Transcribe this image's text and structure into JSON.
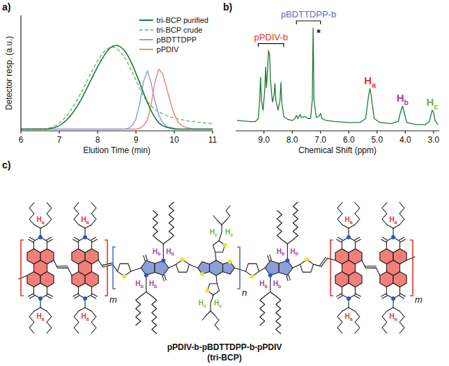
{
  "panels": [
    "a)",
    "b)",
    "c)"
  ],
  "chart_data": [
    {
      "type": "line",
      "xlabel": "Elution Time (min)",
      "ylabel": "Detector resp. (a.u.)",
      "x": [
        6,
        6.1,
        6.2,
        6.3,
        6.4,
        6.5,
        6.6,
        6.7,
        6.8,
        6.9,
        7,
        7.1,
        7.2,
        7.3,
        7.4,
        7.5,
        7.6,
        7.7,
        7.8,
        7.9,
        8,
        8.1,
        8.2,
        8.3,
        8.4,
        8.5,
        8.6,
        8.7,
        8.8,
        8.9,
        9,
        9.1,
        9.2,
        9.3,
        9.4,
        9.5,
        9.6,
        9.7,
        9.8,
        9.9,
        10,
        10.1,
        10.2,
        10.3,
        10.4,
        10.5,
        10.6,
        10.7,
        10.8,
        10.9,
        11
      ],
      "series": [
        {
          "name": "tri-BCP purified",
          "color": "#1b7a3a",
          "line_style": "solid",
          "values": [
            0.02,
            0.02,
            0.02,
            0.02,
            0.02,
            0.02,
            0.02,
            0.02,
            0.03,
            0.04,
            0.06,
            0.09,
            0.13,
            0.18,
            0.24,
            0.31,
            0.39,
            0.48,
            0.57,
            0.66,
            0.75,
            0.83,
            0.9,
            0.96,
            0.99,
            1.0,
            0.98,
            0.94,
            0.87,
            0.78,
            0.67,
            0.56,
            0.44,
            0.33,
            0.23,
            0.15,
            0.09,
            0.06,
            0.04,
            0.03,
            0.02,
            0.02,
            0.02,
            0.02,
            0.02,
            0.02,
            0.02,
            0.02,
            0.02,
            0.02,
            0.02
          ]
        },
        {
          "name": "tri-BCP crude",
          "color": "#74c27a",
          "line_style": "dashed",
          "values": [
            0.02,
            0.02,
            0.02,
            0.02,
            0.02,
            0.02,
            0.02,
            0.03,
            0.04,
            0.06,
            0.09,
            0.13,
            0.18,
            0.24,
            0.31,
            0.39,
            0.47,
            0.56,
            0.65,
            0.74,
            0.82,
            0.89,
            0.94,
            0.97,
            0.98,
            0.96,
            0.92,
            0.86,
            0.78,
            0.69,
            0.59,
            0.49,
            0.4,
            0.34,
            0.29,
            0.25,
            0.22,
            0.2,
            0.18,
            0.16,
            0.15,
            0.14,
            0.13,
            0.12,
            0.11,
            0.11,
            0.1,
            0.1,
            0.09,
            0.09,
            0.08
          ]
        },
        {
          "name": "pBDTTDPP",
          "color": "#8fa6e2",
          "line_style": "solid",
          "values": [
            0.02,
            0.02,
            0.02,
            0.02,
            0.02,
            0.02,
            0.02,
            0.02,
            0.02,
            0.02,
            0.02,
            0.02,
            0.02,
            0.02,
            0.02,
            0.02,
            0.02,
            0.02,
            0.02,
            0.02,
            0.02,
            0.02,
            0.02,
            0.02,
            0.02,
            0.02,
            0.02,
            0.02,
            0.03,
            0.06,
            0.14,
            0.32,
            0.58,
            0.7,
            0.55,
            0.34,
            0.18,
            0.09,
            0.05,
            0.04,
            0.03,
            0.02,
            0.02,
            0.02,
            0.02,
            0.02,
            0.02,
            0.02,
            0.02,
            0.02,
            0.02
          ]
        },
        {
          "name": "pPDIV",
          "color": "#f28a8a",
          "line_style": "solid",
          "values": [
            0.02,
            0.02,
            0.02,
            0.02,
            0.02,
            0.02,
            0.02,
            0.02,
            0.02,
            0.02,
            0.02,
            0.02,
            0.02,
            0.02,
            0.02,
            0.02,
            0.02,
            0.02,
            0.02,
            0.02,
            0.02,
            0.02,
            0.02,
            0.02,
            0.02,
            0.02,
            0.02,
            0.02,
            0.02,
            0.02,
            0.02,
            0.03,
            0.06,
            0.13,
            0.32,
            0.58,
            0.72,
            0.66,
            0.5,
            0.33,
            0.19,
            0.1,
            0.06,
            0.04,
            0.03,
            0.02,
            0.02,
            0.02,
            0.02,
            0.02,
            0.02
          ]
        }
      ],
      "xlim": [
        6,
        11
      ],
      "ylim": [
        0,
        1.35
      ],
      "xticks": [
        6,
        7,
        8,
        9,
        10,
        11
      ],
      "tick_labels": "x",
      "legend": "upper right"
    },
    {
      "type": "line",
      "xlabel": "Chemical Shift (ppm)",
      "x": [
        9.95,
        9.5,
        9.3,
        9.2,
        9.15,
        9.12,
        9.09,
        9.03,
        8.97,
        8.94,
        8.91,
        8.87,
        8.84,
        8.8,
        8.77,
        8.7,
        8.64,
        8.61,
        8.58,
        8.5,
        8.43,
        8.4,
        8.37,
        8.3,
        8.15,
        8,
        7.9,
        7.85,
        7.8,
        7.72,
        7.68,
        7.55,
        7.45,
        7.35,
        7.29,
        7.26,
        7.23,
        7.15,
        7.05,
        7,
        6.95,
        6.8,
        6.5,
        6,
        5.6,
        5.4,
        5.3,
        5.25,
        5.2,
        5.1,
        4.9,
        4.5,
        4.25,
        4.15,
        4.1,
        4.05,
        3.95,
        3.6,
        3.3,
        3.15,
        3.05,
        3,
        2.95,
        2.85
      ],
      "series": [
        {
          "color": "#1b7a3a",
          "values": [
            0.1,
            0.09,
            0.09,
            0.12,
            0.3,
            0.52,
            0.3,
            0.2,
            0.4,
            0.62,
            0.42,
            0.6,
            0.78,
            0.74,
            0.5,
            0.28,
            0.35,
            0.46,
            0.3,
            0.2,
            0.3,
            0.47,
            0.28,
            0.14,
            0.11,
            0.1,
            0.12,
            0.15,
            0.12,
            0.16,
            0.13,
            0.14,
            0.12,
            0.12,
            0.3,
            1.0,
            0.3,
            0.13,
            0.14,
            0.17,
            0.12,
            0.1,
            0.09,
            0.08,
            0.08,
            0.12,
            0.34,
            0.41,
            0.33,
            0.12,
            0.08,
            0.07,
            0.09,
            0.2,
            0.24,
            0.19,
            0.08,
            0.06,
            0.06,
            0.09,
            0.2,
            0.18,
            0.1,
            0.06
          ]
        }
      ],
      "xlim": [
        10,
        2.8
      ],
      "ylim": [
        0,
        1
      ],
      "xticks": [
        {
          "value": 9,
          "label": "9.0"
        },
        {
          "value": 8,
          "label": "8.0"
        },
        {
          "value": 7,
          "label": "7.0"
        },
        {
          "value": 6,
          "label": "6.0"
        },
        {
          "value": 5,
          "label": "5.0"
        },
        {
          "value": 4,
          "label": "4.0"
        },
        {
          "value": 3,
          "label": "3.0"
        }
      ],
      "tick_labels": "x",
      "annotations": [
        {
          "text": "pPDIV-b",
          "x": [
            9.2,
            8.3
          ],
          "color": "#e0362c"
        },
        {
          "text": "pBDTTDPP-b",
          "x": [
            7.85,
            7.0
          ],
          "color": "#5270c4"
        },
        {
          "text": "*",
          "x": 7.26
        },
        {
          "text": "Ha",
          "x": 5.25,
          "color": "#e8352a"
        },
        {
          "text": "Hb",
          "x": 4.1,
          "color": "#a83fa8"
        },
        {
          "text": "Hc",
          "x": 3.05,
          "color": "#74b23f"
        }
      ]
    }
  ],
  "structure": {
    "repeat_labels": [
      "m",
      "n",
      "m"
    ],
    "protons": [
      {
        "label": "Ha",
        "color": "#e8352a"
      },
      {
        "label": "Hb",
        "color": "#a83fa8"
      },
      {
        "label": "Hc",
        "color": "#74b23f"
      }
    ],
    "caption": "pPDIV-b-pBDTTDPP-b-pPDIV",
    "subcaption": "(tri-BCP)"
  }
}
